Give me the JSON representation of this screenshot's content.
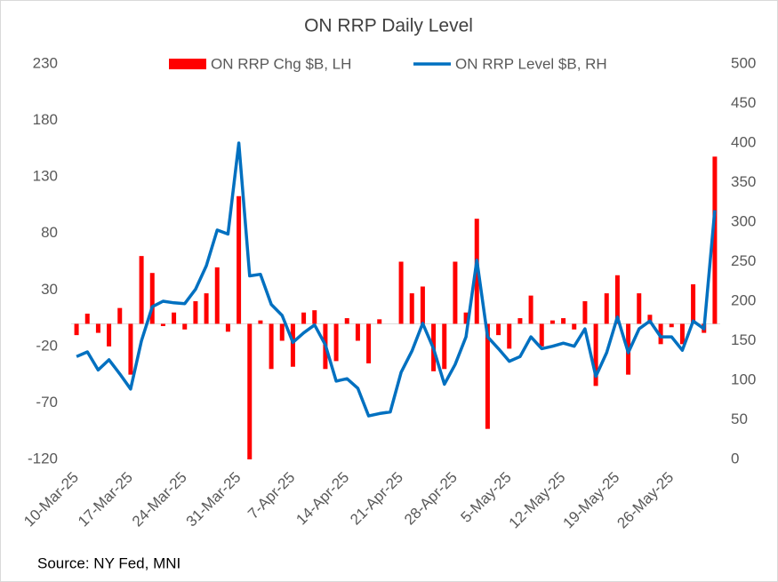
{
  "chart_data": {
    "type": "bar_line",
    "title": "ON RRP Daily Level",
    "source": "Source: NY Fed, MNI",
    "categories": [
      "10-Mar-25",
      null,
      null,
      null,
      null,
      "17-Mar-25",
      null,
      null,
      null,
      null,
      "24-Mar-25",
      null,
      null,
      null,
      null,
      "31-Mar-25",
      null,
      null,
      null,
      null,
      "7-Apr-25",
      null,
      null,
      null,
      null,
      "14-Apr-25",
      null,
      null,
      null,
      null,
      "21-Apr-25",
      null,
      null,
      null,
      null,
      "28-Apr-25",
      null,
      null,
      null,
      null,
      "5-May-25",
      null,
      null,
      null,
      null,
      "12-May-25",
      null,
      null,
      null,
      null,
      "19-May-25",
      null,
      null,
      null,
      null,
      "26-May-25",
      null,
      null,
      null,
      null
    ],
    "series": [
      {
        "name": "ON RRP Chg $B, LH",
        "color": "#ff0000",
        "type": "bar",
        "values": [
          -10,
          9,
          -8,
          -20,
          14,
          -45,
          60,
          45,
          -2,
          10,
          -5,
          20,
          27,
          50,
          -7,
          113,
          -120,
          3,
          -40,
          -15,
          -38,
          10,
          12,
          -40,
          -33,
          5,
          -15,
          -35,
          4,
          0,
          55,
          27,
          33,
          -42,
          -40,
          55,
          10,
          93,
          -93,
          -10,
          -22,
          5,
          25,
          -20,
          3,
          5,
          -5,
          20,
          -55,
          27,
          43,
          -45,
          27,
          8,
          -18,
          -3,
          -18,
          35,
          -8,
          148
        ]
      },
      {
        "name": "ON RRP Level $B, RH",
        "color": "#0070c0",
        "type": "line",
        "axis": "y2",
        "values": [
          130,
          136,
          113,
          126,
          108,
          89,
          150,
          193,
          200,
          198,
          197,
          215,
          245,
          290,
          285,
          400,
          232,
          234,
          196,
          182,
          148,
          160,
          170,
          145,
          99,
          102,
          90,
          55,
          58,
          60,
          110,
          137,
          172,
          140,
          95,
          120,
          155,
          252,
          155,
          140,
          124,
          130,
          155,
          140,
          143,
          147,
          143,
          165,
          105,
          135,
          180,
          135,
          165,
          175,
          155,
          155,
          138,
          175,
          165,
          315
        ]
      }
    ],
    "ylim": [
      -120,
      230
    ],
    "yticks": [
      -120,
      -70,
      -20,
      30,
      80,
      130,
      180,
      230
    ],
    "y2lim": [
      0,
      500
    ],
    "y2ticks": [
      0,
      50,
      100,
      150,
      200,
      250,
      300,
      350,
      400,
      450,
      500
    ],
    "legend": "top"
  }
}
